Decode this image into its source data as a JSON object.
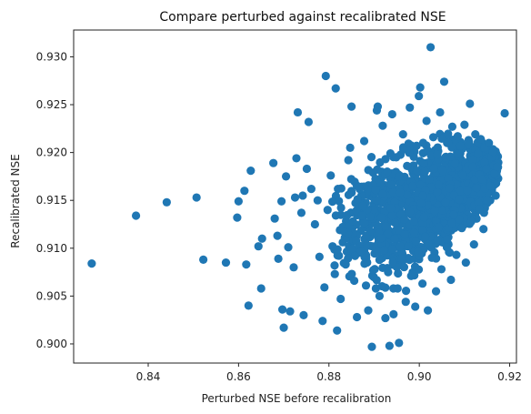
{
  "chart_data": {
    "type": "scatter",
    "title": "Compare perturbed against recalibrated NSE",
    "xlabel": "Perturbed NSE before recalibration",
    "ylabel": "Recalibrated NSE",
    "xlim": [
      0.8235,
      0.9215
    ],
    "ylim": [
      0.898,
      0.9328
    ],
    "xticks": [
      0.84,
      0.86,
      0.88,
      0.9,
      0.92
    ],
    "xtick_labels": [
      "0.84",
      "0.86",
      "0.88",
      "0.90",
      "0.92"
    ],
    "yticks": [
      0.9,
      0.905,
      0.91,
      0.915,
      0.92,
      0.925,
      0.93
    ],
    "ytick_labels": [
      "0.900",
      "0.905",
      "0.910",
      "0.915",
      "0.920",
      "0.925",
      "0.930"
    ],
    "grid": false,
    "color": "#1f77b4",
    "points": [
      [
        0.8275,
        0.9084
      ],
      [
        0.8373,
        0.9134
      ],
      [
        0.8441,
        0.9148
      ],
      [
        0.8507,
        0.9153
      ],
      [
        0.8522,
        0.9088
      ],
      [
        0.8572,
        0.9085
      ],
      [
        0.8597,
        0.9132
      ],
      [
        0.86,
        0.9149
      ],
      [
        0.8613,
        0.916
      ],
      [
        0.8617,
        0.9083
      ],
      [
        0.8622,
        0.904
      ],
      [
        0.8627,
        0.9181
      ],
      [
        0.8644,
        0.9102
      ],
      [
        0.865,
        0.9058
      ],
      [
        0.8652,
        0.911
      ],
      [
        0.8677,
        0.9189
      ],
      [
        0.868,
        0.9131
      ],
      [
        0.8686,
        0.9113
      ],
      [
        0.8688,
        0.9089
      ],
      [
        0.8695,
        0.9149
      ],
      [
        0.8697,
        0.9036
      ],
      [
        0.87,
        0.9017
      ],
      [
        0.8705,
        0.9175
      ],
      [
        0.871,
        0.9101
      ],
      [
        0.8714,
        0.9034
      ],
      [
        0.8722,
        0.908
      ],
      [
        0.8725,
        0.9153
      ],
      [
        0.8728,
        0.9194
      ],
      [
        0.8731,
        0.9242
      ],
      [
        0.8739,
        0.9137
      ],
      [
        0.8742,
        0.9155
      ],
      [
        0.8744,
        0.903
      ],
      [
        0.8751,
        0.9183
      ],
      [
        0.8755,
        0.9232
      ],
      [
        0.8761,
        0.9162
      ],
      [
        0.8769,
        0.9125
      ],
      [
        0.8775,
        0.915
      ],
      [
        0.8779,
        0.9091
      ],
      [
        0.8786,
        0.9024
      ],
      [
        0.879,
        0.9059
      ],
      [
        0.8793,
        0.928
      ],
      [
        0.8797,
        0.914
      ],
      [
        0.8804,
        0.9176
      ],
      [
        0.8808,
        0.9102
      ],
      [
        0.8813,
        0.9073
      ],
      [
        0.8815,
        0.9267
      ],
      [
        0.8818,
        0.9014
      ],
      [
        0.882,
        0.9162
      ],
      [
        0.8826,
        0.9047
      ],
      [
        0.8832,
        0.9118
      ],
      [
        0.8837,
        0.9083
      ],
      [
        0.8843,
        0.9192
      ],
      [
        0.8847,
        0.9205
      ],
      [
        0.885,
        0.9248
      ],
      [
        0.8853,
        0.9128
      ],
      [
        0.8856,
        0.9066
      ],
      [
        0.8862,
        0.9028
      ],
      [
        0.8866,
        0.9164
      ],
      [
        0.8871,
        0.9097
      ],
      [
        0.8875,
        0.9144
      ],
      [
        0.8878,
        0.9212
      ],
      [
        0.8882,
        0.9061
      ],
      [
        0.8887,
        0.9035
      ],
      [
        0.8891,
        0.9118
      ],
      [
        0.8895,
        0.8997
      ],
      [
        0.8898,
        0.9077
      ],
      [
        0.8903,
        0.9161
      ],
      [
        0.8906,
        0.9244
      ],
      [
        0.8908,
        0.9248
      ],
      [
        0.8912,
        0.905
      ],
      [
        0.8916,
        0.9132
      ],
      [
        0.8919,
        0.9228
      ],
      [
        0.8922,
        0.9098
      ],
      [
        0.8925,
        0.9027
      ],
      [
        0.8929,
        0.918
      ],
      [
        0.8931,
        0.9075
      ],
      [
        0.8934,
        0.8998
      ],
      [
        0.8937,
        0.9142
      ],
      [
        0.894,
        0.924
      ],
      [
        0.8943,
        0.9031
      ],
      [
        0.8946,
        0.911
      ],
      [
        0.8949,
        0.9195
      ],
      [
        0.8952,
        0.9058
      ],
      [
        0.8955,
        0.9001
      ],
      [
        0.8958,
        0.9158
      ],
      [
        0.8961,
        0.9089
      ],
      [
        0.8964,
        0.9219
      ],
      [
        0.8967,
        0.913
      ],
      [
        0.897,
        0.9044
      ],
      [
        0.8973,
        0.9186
      ],
      [
        0.8976,
        0.9102
      ],
      [
        0.8979,
        0.9247
      ],
      [
        0.8982,
        0.9071
      ],
      [
        0.8985,
        0.9165
      ],
      [
        0.8988,
        0.9128
      ],
      [
        0.8991,
        0.9039
      ],
      [
        0.8994,
        0.9207
      ],
      [
        0.8997,
        0.9096
      ],
      [
        0.8999,
        0.9259
      ],
      [
        0.9002,
        0.9268
      ],
      [
        0.9004,
        0.9147
      ],
      [
        0.9007,
        0.9063
      ],
      [
        0.901,
        0.9189
      ],
      [
        0.9013,
        0.9112
      ],
      [
        0.9016,
        0.9233
      ],
      [
        0.9019,
        0.9035
      ],
      [
        0.9022,
        0.9172
      ],
      [
        0.9025,
        0.931
      ],
      [
        0.9028,
        0.909
      ],
      [
        0.9031,
        0.9216
      ],
      [
        0.9034,
        0.9139
      ],
      [
        0.9037,
        0.9055
      ],
      [
        0.904,
        0.9198
      ],
      [
        0.9043,
        0.9122
      ],
      [
        0.9046,
        0.9242
      ],
      [
        0.9049,
        0.9078
      ],
      [
        0.9052,
        0.9181
      ],
      [
        0.9055,
        0.9274
      ],
      [
        0.9058,
        0.9148
      ],
      [
        0.9061,
        0.9101
      ],
      [
        0.9064,
        0.921
      ],
      [
        0.9067,
        0.9163
      ],
      [
        0.907,
        0.9067
      ],
      [
        0.9073,
        0.9227
      ],
      [
        0.9076,
        0.9135
      ],
      [
        0.9079,
        0.9188
      ],
      [
        0.9082,
        0.9093
      ],
      [
        0.9085,
        0.9217
      ],
      [
        0.9088,
        0.9151
      ],
      [
        0.9091,
        0.9207
      ],
      [
        0.9094,
        0.9121
      ],
      [
        0.9097,
        0.9176
      ],
      [
        0.91,
        0.9229
      ],
      [
        0.9103,
        0.9085
      ],
      [
        0.9106,
        0.916
      ],
      [
        0.9109,
        0.9213
      ],
      [
        0.9112,
        0.9251
      ],
      [
        0.9115,
        0.9128
      ],
      [
        0.9118,
        0.9185
      ],
      [
        0.9121,
        0.9104
      ],
      [
        0.9124,
        0.9219
      ],
      [
        0.9127,
        0.9163
      ],
      [
        0.913,
        0.9199
      ],
      [
        0.9133,
        0.9141
      ],
      [
        0.9136,
        0.9214
      ],
      [
        0.9139,
        0.9172
      ],
      [
        0.9142,
        0.912
      ],
      [
        0.9145,
        0.9205
      ],
      [
        0.9148,
        0.9183
      ],
      [
        0.9151,
        0.915
      ],
      [
        0.9154,
        0.921
      ],
      [
        0.9157,
        0.9165
      ],
      [
        0.916,
        0.9196
      ],
      [
        0.9163,
        0.9201
      ],
      [
        0.9166,
        0.9178
      ],
      [
        0.9169,
        0.9155
      ],
      [
        0.9172,
        0.9185
      ],
      [
        0.9189,
        0.9241
      ]
    ],
    "cloud": {
      "description_of_dense_region": "",
      "x_range": [
        0.88,
        0.9175
      ],
      "y_range_at_x": [
        [
          0.88,
          0.905,
          0.918
        ],
        [
          0.885,
          0.904,
          0.92
        ],
        [
          0.89,
          0.903,
          0.9215
        ],
        [
          0.895,
          0.9025,
          0.9225
        ],
        [
          0.9,
          0.904,
          0.9228
        ],
        [
          0.905,
          0.907,
          0.9225
        ],
        [
          0.91,
          0.91,
          0.9222
        ],
        [
          0.915,
          0.913,
          0.9215
        ],
        [
          0.9175,
          0.915,
          0.9205
        ]
      ],
      "count": 1400
    }
  }
}
